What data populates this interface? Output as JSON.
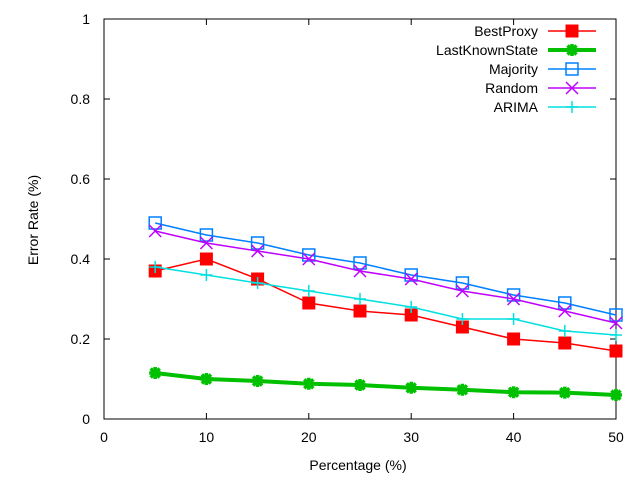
{
  "chart_data": {
    "type": "line",
    "title": "",
    "xlabel": "Percentage (%)",
    "ylabel": "Error Rate (%)",
    "xlim": [
      0,
      50
    ],
    "ylim": [
      0,
      1
    ],
    "grid": false,
    "legend_position": "top-right",
    "xticks": [
      0,
      10,
      20,
      30,
      40,
      50
    ],
    "yticks": [
      0,
      0.2,
      0.4,
      0.6,
      0.8,
      1
    ],
    "x_tick_labels": [
      "0",
      "10",
      "20",
      "30",
      "40",
      "50"
    ],
    "y_tick_labels": [
      "0",
      "0.2",
      "0.4",
      "0.6",
      "0.8",
      "1"
    ],
    "x": [
      5,
      10,
      15,
      20,
      25,
      30,
      35,
      40,
      45,
      50
    ],
    "series": [
      {
        "name": "BestProxy",
        "color": "#ff0000",
        "marker": "filled-square",
        "values": [
          0.37,
          0.4,
          0.35,
          0.29,
          0.27,
          0.26,
          0.23,
          0.2,
          0.19,
          0.17
        ]
      },
      {
        "name": "LastKnownState",
        "color": "#00c000",
        "marker": "asterisk",
        "values": [
          0.115,
          0.1,
          0.095,
          0.088,
          0.085,
          0.078,
          0.073,
          0.067,
          0.066,
          0.06
        ]
      },
      {
        "name": "Majority",
        "color": "#0080ff",
        "marker": "open-square",
        "values": [
          0.49,
          0.46,
          0.44,
          0.41,
          0.39,
          0.36,
          0.34,
          0.31,
          0.29,
          0.26
        ]
      },
      {
        "name": "Random",
        "color": "#c000ff",
        "marker": "x",
        "values": [
          0.47,
          0.44,
          0.42,
          0.4,
          0.37,
          0.35,
          0.32,
          0.3,
          0.27,
          0.24
        ]
      },
      {
        "name": "ARIMA",
        "color": "#00e0e0",
        "marker": "plus",
        "values": [
          0.38,
          0.36,
          0.34,
          0.32,
          0.3,
          0.28,
          0.25,
          0.25,
          0.22,
          0.21
        ]
      }
    ]
  }
}
